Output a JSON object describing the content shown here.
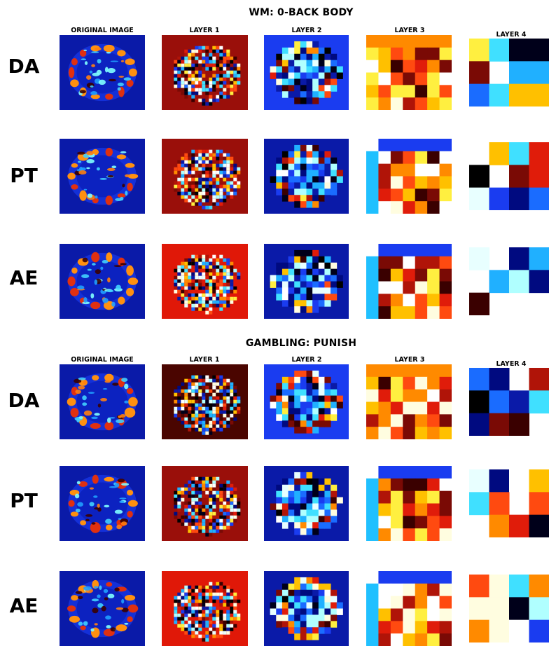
{
  "sections": [
    {
      "title": "WM: 0-BACK BODY",
      "columns": [
        "ORIGINAL IMAGE",
        "LAYER 1",
        "LAYER 2",
        "LAYER 3",
        "LAYER 4"
      ],
      "rows": [
        "DA",
        "PT",
        "AE"
      ]
    },
    {
      "title": "GAMBLING: PUNISH",
      "columns": [
        "ORIGINAL IMAGE",
        "LAYER 1",
        "LAYER 2",
        "LAYER 3",
        "LAYER 4"
      ],
      "rows": [
        "DA",
        "PT",
        "AE"
      ]
    }
  ],
  "colors": {
    "dark_blue": "#0a1aa8",
    "mid_blue": "#1a3cf0",
    "dark_red": "#9a0f0a",
    "red": "#e01808",
    "orange": "#ff8a00"
  }
}
